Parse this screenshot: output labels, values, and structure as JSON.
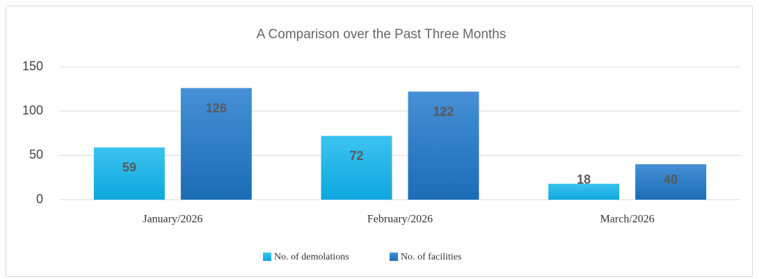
{
  "chart_data": {
    "type": "bar",
    "title": "A Comparison over the Past Three Months",
    "categories": [
      "January/2026",
      "February/2026",
      "March/2026"
    ],
    "series": [
      {
        "name": "No. of demolations",
        "color": "#19b1e6",
        "values": [
          59,
          72,
          18
        ]
      },
      {
        "name": "No. of facilities",
        "color": "#2a7ec9",
        "values": [
          126,
          122,
          40
        ]
      }
    ],
    "ylim": [
      0,
      150
    ],
    "yticks": [
      0,
      50,
      100,
      150
    ],
    "grid": true,
    "legend": "bottom"
  }
}
